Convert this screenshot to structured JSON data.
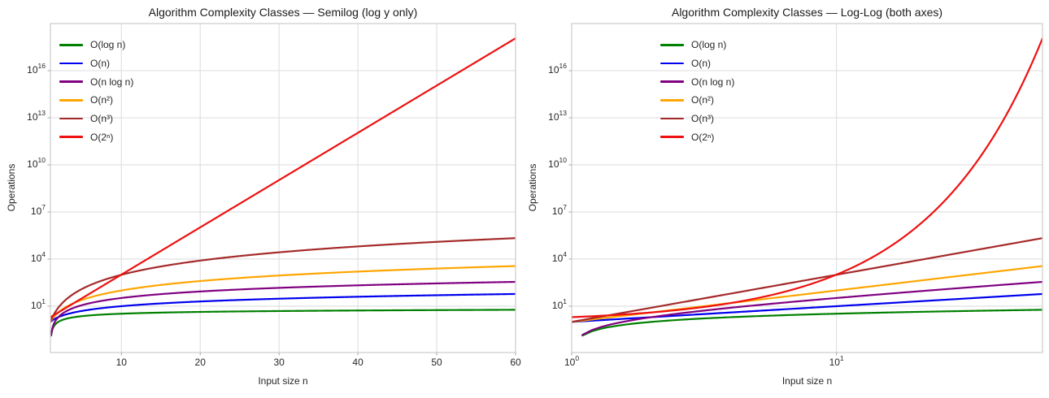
{
  "figure": {
    "background": "#ffffff",
    "grid_color": "#dedede",
    "spine_color": "#cccccc",
    "tick_mark_color": "#aaaaaa",
    "text_color": "#262626",
    "title_color": "#1a1a1a"
  },
  "series": [
    {
      "name": "O(log n)",
      "fn": "log2(n)",
      "color": "#008000"
    },
    {
      "name": "O(n)",
      "fn": "n",
      "color": "#0000ee"
    },
    {
      "name": "O(n log n)",
      "fn": "n log2(n)",
      "color": "#800080"
    },
    {
      "name": "O(n²)",
      "fn": "n^2",
      "color": "#ffa500"
    },
    {
      "name": "O(n³)",
      "fn": "n^3",
      "color": "#a52a2a"
    },
    {
      "name": "O(2ⁿ)",
      "fn": "2^n",
      "color": "#ee1111"
    }
  ],
  "charts": [
    {
      "title": "Algorithm Complexity Classes — Semilog (log y only)",
      "xlabel": "Input size n",
      "ylabel": "Operations",
      "x_scale": "linear",
      "y_scale": "log",
      "x_ticks": [
        {
          "v": 10,
          "base": "10",
          "sup": ""
        },
        {
          "v": 20,
          "base": "20",
          "sup": ""
        },
        {
          "v": 30,
          "base": "30",
          "sup": ""
        },
        {
          "v": 40,
          "base": "40",
          "sup": ""
        },
        {
          "v": 50,
          "base": "50",
          "sup": ""
        },
        {
          "v": 60,
          "base": "60",
          "sup": ""
        }
      ],
      "y_ticks": [
        {
          "exp": 1,
          "base": "10",
          "sup": "1"
        },
        {
          "exp": 4,
          "base": "10",
          "sup": "4"
        },
        {
          "exp": 7,
          "base": "10",
          "sup": "7"
        },
        {
          "exp": 10,
          "base": "10",
          "sup": "10"
        },
        {
          "exp": 13,
          "base": "10",
          "sup": "13"
        },
        {
          "exp": 16,
          "base": "10",
          "sup": "16"
        }
      ]
    },
    {
      "title": "Algorithm Complexity Classes — Log-Log (both axes)",
      "xlabel": "Input size n",
      "ylabel": "Operations",
      "x_scale": "log",
      "y_scale": "log",
      "x_ticks": [
        {
          "v": 1,
          "base": "10",
          "sup": "0"
        },
        {
          "v": 10,
          "base": "10",
          "sup": "1"
        }
      ],
      "y_ticks": [
        {
          "exp": 1,
          "base": "10",
          "sup": "1"
        },
        {
          "exp": 4,
          "base": "10",
          "sup": "4"
        },
        {
          "exp": 7,
          "base": "10",
          "sup": "7"
        },
        {
          "exp": 10,
          "base": "10",
          "sup": "10"
        },
        {
          "exp": 13,
          "base": "10",
          "sup": "13"
        },
        {
          "exp": 16,
          "base": "10",
          "sup": "16"
        }
      ]
    }
  ],
  "chart_data": [
    {
      "type": "line",
      "title": "Algorithm Complexity Classes — Semilog (log y only)",
      "xlabel": "Input size n",
      "ylabel": "Operations",
      "x_scale": "linear",
      "y_scale": "log",
      "xlim": [
        1,
        60
      ],
      "ylim": [
        0.011,
        1e+19
      ],
      "grid": true,
      "legend_position": "upper left",
      "x_sample": [
        1,
        2,
        5,
        10,
        20,
        30,
        40,
        50,
        60
      ],
      "series": [
        {
          "name": "O(log n)",
          "values": [
            0,
            1,
            2.32,
            3.32,
            4.32,
            4.91,
            5.32,
            5.64,
            5.91
          ]
        },
        {
          "name": "O(n)",
          "values": [
            1,
            2,
            5,
            10,
            20,
            30,
            40,
            50,
            60
          ]
        },
        {
          "name": "O(n log n)",
          "values": [
            0,
            2,
            11.6,
            33.2,
            86.4,
            147.2,
            212.9,
            282.2,
            354.4
          ]
        },
        {
          "name": "O(n²)",
          "values": [
            1,
            4,
            25,
            100,
            400,
            900,
            1600,
            2500,
            3600
          ]
        },
        {
          "name": "O(n³)",
          "values": [
            1,
            8,
            125,
            1000,
            8000,
            27000,
            64000,
            125000,
            216000
          ]
        },
        {
          "name": "O(2ⁿ)",
          "values": [
            2,
            4,
            32,
            1024,
            1048576,
            1073741824,
            1099500000000.0,
            1125900000000000.0,
            1.1529e+18
          ]
        }
      ]
    },
    {
      "type": "line",
      "title": "Algorithm Complexity Classes — Log-Log (both axes)",
      "xlabel": "Input size n",
      "ylabel": "Operations",
      "x_scale": "log",
      "y_scale": "log",
      "xlim": [
        1,
        60
      ],
      "ylim": [
        0.011,
        1e+19
      ],
      "grid": true,
      "legend_position": "upper left",
      "x_sample": [
        1,
        2,
        5,
        10,
        20,
        30,
        40,
        50,
        60
      ],
      "series": [
        {
          "name": "O(log n)",
          "values": [
            0,
            1,
            2.32,
            3.32,
            4.32,
            4.91,
            5.32,
            5.64,
            5.91
          ]
        },
        {
          "name": "O(n)",
          "values": [
            1,
            2,
            5,
            10,
            20,
            30,
            40,
            50,
            60
          ]
        },
        {
          "name": "O(n log n)",
          "values": [
            0,
            2,
            11.6,
            33.2,
            86.4,
            147.2,
            212.9,
            282.2,
            354.4
          ]
        },
        {
          "name": "O(n²)",
          "values": [
            1,
            4,
            25,
            100,
            400,
            900,
            1600,
            2500,
            3600
          ]
        },
        {
          "name": "O(n³)",
          "values": [
            1,
            8,
            125,
            1000,
            8000,
            27000,
            64000,
            125000,
            216000
          ]
        },
        {
          "name": "O(2ⁿ)",
          "values": [
            2,
            4,
            32,
            1024,
            1048576,
            1073741824,
            1099500000000.0,
            1125900000000000.0,
            1.1529e+18
          ]
        }
      ]
    }
  ]
}
